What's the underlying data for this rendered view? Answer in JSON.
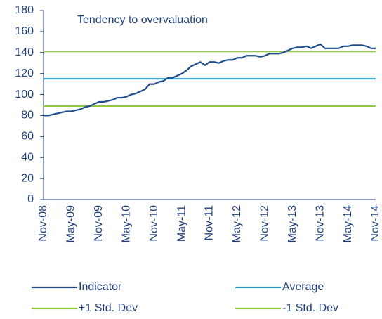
{
  "chart_data": {
    "type": "line",
    "annotation": "Tendency to overvaluation",
    "categories": [
      "Nov-08",
      null,
      null,
      null,
      null,
      null,
      "May-09",
      null,
      null,
      null,
      null,
      null,
      "Nov-09",
      null,
      null,
      null,
      null,
      null,
      "May-10",
      null,
      null,
      null,
      null,
      null,
      "Nov-10",
      null,
      null,
      null,
      null,
      null,
      "May-11",
      null,
      null,
      null,
      null,
      null,
      "Nov-11",
      null,
      null,
      null,
      null,
      null,
      "May-12",
      null,
      null,
      null,
      null,
      null,
      "Nov-12",
      null,
      null,
      null,
      null,
      null,
      "May-13",
      null,
      null,
      null,
      null,
      null,
      "Nov-13",
      null,
      null,
      null,
      null,
      null,
      "May-14",
      null,
      null,
      null,
      null,
      null,
      "Nov-14"
    ],
    "series": [
      {
        "name": "Indicator",
        "color": "#1f4e8c",
        "values": [
          80,
          80,
          81,
          82,
          83,
          84,
          84,
          85,
          86,
          88,
          89,
          91,
          93,
          93,
          94,
          95,
          97,
          97,
          98,
          100,
          101,
          103,
          105,
          110,
          110,
          112,
          113,
          116,
          116,
          118,
          120,
          123,
          127,
          129,
          131,
          128,
          131,
          131,
          130,
          132,
          133,
          133,
          135,
          135,
          137,
          137,
          137,
          136,
          137,
          139,
          139,
          139,
          140,
          142,
          144,
          145,
          145,
          146,
          144,
          146,
          148,
          144,
          144,
          144,
          144,
          146,
          146,
          147,
          147,
          147,
          146,
          144,
          144
        ]
      }
    ],
    "reference_lines": [
      {
        "name": "Average",
        "value": 115,
        "color": "#1ea0d8"
      },
      {
        "name": "+1 Std. Dev",
        "value": 141,
        "color": "#92c83e"
      },
      {
        "name": "-1 Std. Dev",
        "value": 89,
        "color": "#92c83e"
      }
    ],
    "ylim": [
      0,
      180
    ],
    "yticks": [
      0,
      20,
      40,
      60,
      80,
      100,
      120,
      140,
      160,
      180
    ]
  }
}
